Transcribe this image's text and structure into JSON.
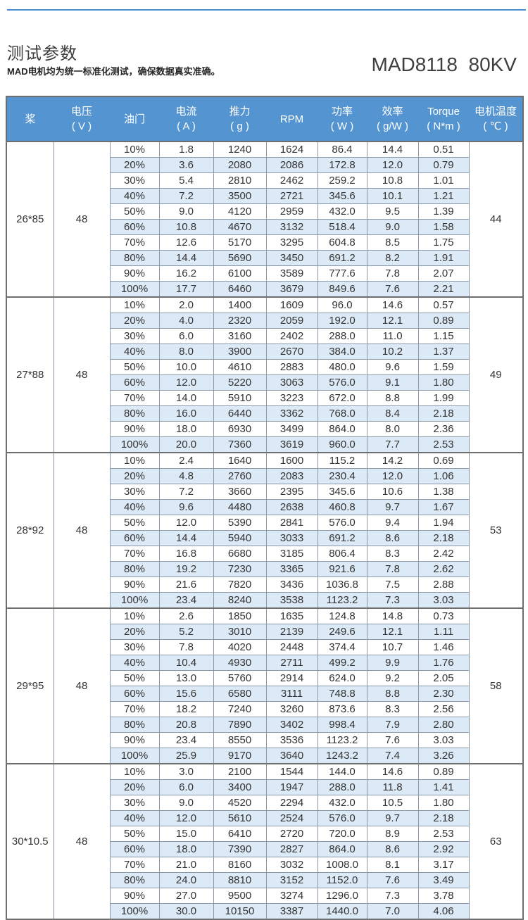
{
  "page": {
    "title": "测试参数",
    "subtitle": "MAD电机均为统一标准化测试，确保数据真实准确。",
    "model": "MAD8118  80KV"
  },
  "colors": {
    "accent_line": "#4a8fd2",
    "table_header_bg": "#5495d1",
    "row_alt_bg": "#dce9f6",
    "border_inner": "#8b98a8",
    "border_outer": "#6e6e6e"
  },
  "table": {
    "headers": [
      {
        "l1": "桨",
        "l2": ""
      },
      {
        "l1": "电压",
        "l2": "( V )"
      },
      {
        "l1": "油门",
        "l2": ""
      },
      {
        "l1": "电流",
        "l2": "( A )"
      },
      {
        "l1": "推力",
        "l2": "( g )"
      },
      {
        "l1": "RPM",
        "l2": ""
      },
      {
        "l1": "功率",
        "l2": "( W )"
      },
      {
        "l1": "效率",
        "l2": "( g/W )"
      },
      {
        "l1": "Torque",
        "l2": "( N*m )"
      },
      {
        "l1": "电机温度",
        "l2": "( ℃ )"
      }
    ],
    "groups": [
      {
        "prop": "26*85",
        "voltage": "48",
        "temp": "44",
        "rows": [
          [
            "10%",
            "1.8",
            "1240",
            "1624",
            "86.4",
            "14.4",
            "0.51"
          ],
          [
            "20%",
            "3.6",
            "2080",
            "2086",
            "172.8",
            "12.0",
            "0.79"
          ],
          [
            "30%",
            "5.4",
            "2810",
            "2462",
            "259.2",
            "10.8",
            "1.01"
          ],
          [
            "40%",
            "7.2",
            "3500",
            "2721",
            "345.6",
            "10.1",
            "1.21"
          ],
          [
            "50%",
            "9.0",
            "4120",
            "2959",
            "432.0",
            "9.5",
            "1.39"
          ],
          [
            "60%",
            "10.8",
            "4670",
            "3132",
            "518.4",
            "9.0",
            "1.58"
          ],
          [
            "70%",
            "12.6",
            "5170",
            "3295",
            "604.8",
            "8.5",
            "1.75"
          ],
          [
            "80%",
            "14.4",
            "5690",
            "3450",
            "691.2",
            "8.2",
            "1.91"
          ],
          [
            "90%",
            "16.2",
            "6100",
            "3589",
            "777.6",
            "7.8",
            "2.07"
          ],
          [
            "100%",
            "17.7",
            "6460",
            "3679",
            "849.6",
            "7.6",
            "2.21"
          ]
        ]
      },
      {
        "prop": "27*88",
        "voltage": "48",
        "temp": "49",
        "rows": [
          [
            "10%",
            "2.0",
            "1400",
            "1609",
            "96.0",
            "14.6",
            "0.57"
          ],
          [
            "20%",
            "4.0",
            "2320",
            "2059",
            "192.0",
            "12.1",
            "0.89"
          ],
          [
            "30%",
            "6.0",
            "3160",
            "2402",
            "288.0",
            "11.0",
            "1.15"
          ],
          [
            "40%",
            "8.0",
            "3900",
            "2670",
            "384.0",
            "10.2",
            "1.37"
          ],
          [
            "50%",
            "10.0",
            "4610",
            "2883",
            "480.0",
            "9.6",
            "1.59"
          ],
          [
            "60%",
            "12.0",
            "5220",
            "3063",
            "576.0",
            "9.1",
            "1.80"
          ],
          [
            "70%",
            "14.0",
            "5910",
            "3223",
            "672.0",
            "8.8",
            "1.99"
          ],
          [
            "80%",
            "16.0",
            "6440",
            "3362",
            "768.0",
            "8.4",
            "2.18"
          ],
          [
            "90%",
            "18.0",
            "6930",
            "3499",
            "864.0",
            "8.0",
            "2.36"
          ],
          [
            "100%",
            "20.0",
            "7360",
            "3619",
            "960.0",
            "7.7",
            "2.53"
          ]
        ]
      },
      {
        "prop": "28*92",
        "voltage": "48",
        "temp": "53",
        "rows": [
          [
            "10%",
            "2.4",
            "1640",
            "1600",
            "115.2",
            "14.2",
            "0.69"
          ],
          [
            "20%",
            "4.8",
            "2760",
            "2083",
            "230.4",
            "12.0",
            "1.06"
          ],
          [
            "30%",
            "7.2",
            "3660",
            "2395",
            "345.6",
            "10.6",
            "1.38"
          ],
          [
            "40%",
            "9.6",
            "4480",
            "2638",
            "460.8",
            "9.7",
            "1.67"
          ],
          [
            "50%",
            "12.0",
            "5390",
            "2841",
            "576.0",
            "9.4",
            "1.94"
          ],
          [
            "60%",
            "14.4",
            "5940",
            "3033",
            "691.2",
            "8.6",
            "2.18"
          ],
          [
            "70%",
            "16.8",
            "6680",
            "3185",
            "806.4",
            "8.3",
            "2.42"
          ],
          [
            "80%",
            "19.2",
            "7230",
            "3365",
            "921.6",
            "7.8",
            "2.62"
          ],
          [
            "90%",
            "21.6",
            "7820",
            "3436",
            "1036.8",
            "7.5",
            "2.88"
          ],
          [
            "100%",
            "23.4",
            "8240",
            "3538",
            "1123.2",
            "7.3",
            "3.03"
          ]
        ]
      },
      {
        "prop": "29*95",
        "voltage": "48",
        "temp": "58",
        "rows": [
          [
            "10%",
            "2.6",
            "1850",
            "1635",
            "124.8",
            "14.8",
            "0.73"
          ],
          [
            "20%",
            "5.2",
            "3010",
            "2139",
            "249.6",
            "12.1",
            "1.11"
          ],
          [
            "30%",
            "7.8",
            "4020",
            "2448",
            "374.4",
            "10.7",
            "1.46"
          ],
          [
            "40%",
            "10.4",
            "4930",
            "2711",
            "499.2",
            "9.9",
            "1.76"
          ],
          [
            "50%",
            "13.0",
            "5760",
            "2914",
            "624.0",
            "9.2",
            "2.05"
          ],
          [
            "60%",
            "15.6",
            "6580",
            "3111",
            "748.8",
            "8.8",
            "2.30"
          ],
          [
            "70%",
            "18.2",
            "7240",
            "3260",
            "873.6",
            "8.3",
            "2.56"
          ],
          [
            "80%",
            "20.8",
            "7890",
            "3402",
            "998.4",
            "7.9",
            "2.80"
          ],
          [
            "90%",
            "23.4",
            "8550",
            "3536",
            "1123.2",
            "7.6",
            "3.03"
          ],
          [
            "100%",
            "25.9",
            "9170",
            "3640",
            "1243.2",
            "7.4",
            "3.26"
          ]
        ]
      },
      {
        "prop": "30*10.5",
        "voltage": "48",
        "temp": "63",
        "rows": [
          [
            "10%",
            "3.0",
            "2100",
            "1544",
            "144.0",
            "14.6",
            "0.89"
          ],
          [
            "20%",
            "6.0",
            "3400",
            "1947",
            "288.0",
            "11.8",
            "1.41"
          ],
          [
            "30%",
            "9.0",
            "4520",
            "2294",
            "432.0",
            "10.5",
            "1.80"
          ],
          [
            "40%",
            "12.0",
            "5610",
            "2524",
            "576.0",
            "9.7",
            "2.18"
          ],
          [
            "50%",
            "15.0",
            "6410",
            "2720",
            "720.0",
            "8.9",
            "2.53"
          ],
          [
            "60%",
            "18.0",
            "7390",
            "2827",
            "864.0",
            "8.6",
            "2.92"
          ],
          [
            "70%",
            "21.0",
            "8160",
            "3032",
            "1008.0",
            "8.1",
            "3.17"
          ],
          [
            "80%",
            "24.0",
            "8810",
            "3152",
            "1152.0",
            "7.6",
            "3.49"
          ],
          [
            "90%",
            "27.0",
            "9500",
            "3274",
            "1296.0",
            "7.3",
            "3.78"
          ],
          [
            "100%",
            "30.0",
            "10150",
            "3387",
            "1440.0",
            "7.0",
            "4.06"
          ]
        ]
      }
    ]
  }
}
